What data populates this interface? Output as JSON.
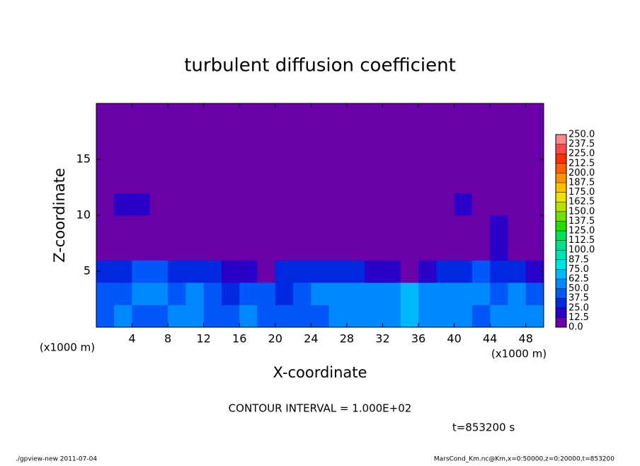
{
  "chart_data": {
    "type": "heatmap",
    "title": "turbulent diffusion coefficient",
    "xlabel": "X-coordinate",
    "ylabel": "Z-coordinate",
    "axis_unit": "(x1000 m)",
    "xlim": [
      0,
      50
    ],
    "xticks": [
      4,
      8,
      12,
      16,
      20,
      24,
      28,
      32,
      36,
      40,
      44,
      48
    ],
    "ylim": [
      0,
      20
    ],
    "yticks": [
      5,
      10,
      15
    ],
    "x": [
      1,
      3,
      5,
      7,
      9,
      11,
      13,
      15,
      17,
      19,
      21,
      23,
      25,
      27,
      29,
      31,
      33,
      35,
      37,
      39,
      41,
      43,
      45,
      47,
      49
    ],
    "y": [
      1,
      3,
      5,
      7,
      9,
      11,
      13,
      15,
      17,
      19
    ],
    "values": [
      [
        45,
        50,
        40,
        45,
        50,
        55,
        40,
        45,
        50,
        45,
        40,
        45,
        40,
        50,
        55,
        60,
        55,
        70,
        60,
        50,
        55,
        45,
        50,
        55,
        60
      ],
      [
        40,
        45,
        50,
        55,
        45,
        50,
        40,
        35,
        45,
        40,
        35,
        40,
        50,
        55,
        60,
        55,
        50,
        65,
        55,
        60,
        60,
        55,
        45,
        50,
        45
      ],
      [
        30,
        35,
        45,
        40,
        35,
        30,
        25,
        20,
        15,
        10,
        30,
        35,
        30,
        35,
        25,
        20,
        15,
        10,
        20,
        35,
        30,
        40,
        35,
        25,
        15
      ],
      [
        0,
        5,
        5,
        0,
        0,
        0,
        0,
        0,
        0,
        0,
        0,
        0,
        0,
        0,
        0,
        0,
        0,
        0,
        0,
        0,
        0,
        0,
        15,
        0,
        0
      ],
      [
        5,
        10,
        5,
        0,
        5,
        0,
        0,
        5,
        5,
        0,
        0,
        0,
        5,
        0,
        5,
        0,
        0,
        5,
        0,
        10,
        5,
        5,
        20,
        5,
        5
      ],
      [
        5,
        15,
        20,
        10,
        5,
        5,
        0,
        5,
        0,
        5,
        5,
        0,
        5,
        0,
        0,
        5,
        5,
        5,
        5,
        10,
        15,
        5,
        5,
        10,
        5
      ],
      [
        5,
        5,
        5,
        0,
        0,
        0,
        0,
        0,
        0,
        0,
        0,
        0,
        0,
        0,
        0,
        0,
        0,
        0,
        0,
        0,
        0,
        5,
        0,
        5,
        0
      ],
      [
        0,
        0,
        0,
        0,
        0,
        0,
        0,
        0,
        0,
        0,
        0,
        0,
        0,
        0,
        0,
        0,
        0,
        0,
        0,
        0,
        0,
        0,
        0,
        0,
        0
      ],
      [
        0,
        0,
        0,
        0,
        0,
        0,
        0,
        0,
        0,
        0,
        0,
        0,
        0,
        0,
        0,
        0,
        0,
        0,
        0,
        0,
        0,
        0,
        0,
        0,
        0
      ],
      [
        0,
        0,
        0,
        0,
        0,
        0,
        0,
        0,
        0,
        0,
        0,
        0,
        0,
        0,
        0,
        0,
        0,
        0,
        0,
        0,
        0,
        0,
        0,
        0,
        0
      ]
    ],
    "colorbar_ticks": [
      {
        "value": 0,
        "label": "0.0"
      },
      12.5,
      {
        "value": 25,
        "label": "25.0"
      },
      37.5,
      {
        "value": 50,
        "label": "50.0"
      },
      62.5,
      {
        "value": 75,
        "label": "75.0"
      },
      87.5,
      {
        "value": 100,
        "label": "100.0"
      },
      112.5,
      {
        "value": 125,
        "label": "125.0"
      },
      137.5,
      {
        "value": 150,
        "label": "150.0"
      },
      162.5,
      {
        "value": 175,
        "label": "175.0"
      },
      187.5,
      {
        "value": 200,
        "label": "200.0"
      },
      212.5,
      {
        "value": 225,
        "label": "225.0"
      },
      237.5,
      {
        "value": 250,
        "label": "250.0"
      }
    ],
    "colors": [
      "#6a00a8",
      "#2a00c8",
      "#0028e0",
      "#0058f8",
      "#0088ff",
      "#00b8ff",
      "#00e0e8",
      "#00e0b8",
      "#00e088",
      "#00e050",
      "#20e000",
      "#70e000",
      "#b8e000",
      "#f0e000",
      "#ffc000",
      "#ff9000",
      "#ff6000",
      "#ff3000",
      "#ff4848",
      "#ff8888"
    ],
    "contour_note": "CONTOUR INTERVAL = 1.000E+02",
    "time_note": "t=853200 s",
    "footer_left": "./gpview-new  2011-07-04",
    "footer_right": "MarsCond_Km.nc@Km,x=0:50000,z=0:20000,t=853200"
  }
}
